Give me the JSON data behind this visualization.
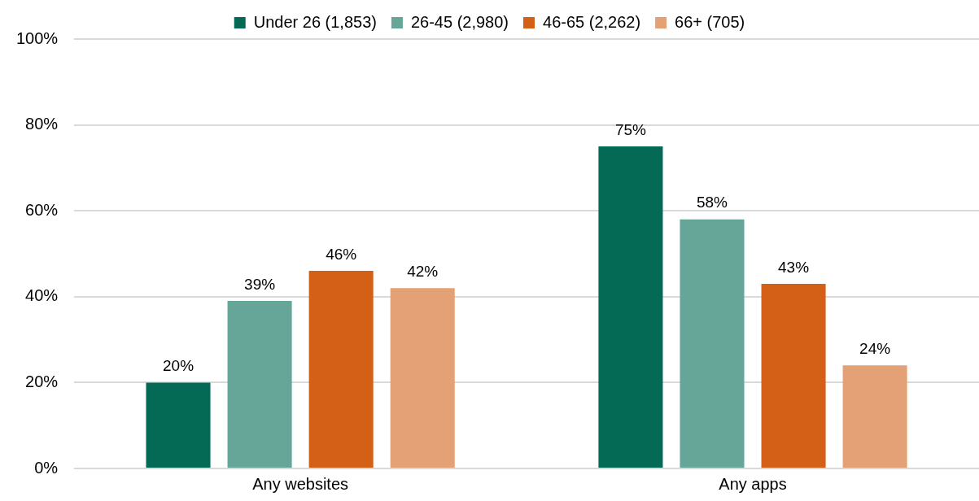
{
  "chart_data": {
    "type": "bar",
    "categories": [
      "Any websites",
      "Any apps"
    ],
    "series": [
      {
        "name": "Under 26 (1,853)",
        "color": "#046a56",
        "values": [
          20,
          75
        ],
        "value_labels": [
          "20%",
          "75%"
        ]
      },
      {
        "name": "26-45 (2,980)",
        "color": "#66a699",
        "values": [
          39,
          58
        ],
        "value_labels": [
          "39%",
          "58%"
        ]
      },
      {
        "name": "46-65 (2,262)",
        "color": "#d45f17",
        "values": [
          46,
          43
        ],
        "value_labels": [
          "46%",
          "43%"
        ]
      },
      {
        "name": "66+ (705)",
        "color": "#e4a175",
        "values": [
          42,
          24
        ],
        "value_labels": [
          "42%",
          "24%"
        ]
      }
    ],
    "ylim": [
      0,
      100
    ],
    "yticks": [
      {
        "value": 0,
        "label": "0%"
      },
      {
        "value": 20,
        "label": "20%"
      },
      {
        "value": 40,
        "label": "40%"
      },
      {
        "value": 60,
        "label": "60%"
      },
      {
        "value": 80,
        "label": "80%"
      },
      {
        "value": 100,
        "label": "100%"
      }
    ],
    "grid": "y",
    "legend": "top"
  }
}
